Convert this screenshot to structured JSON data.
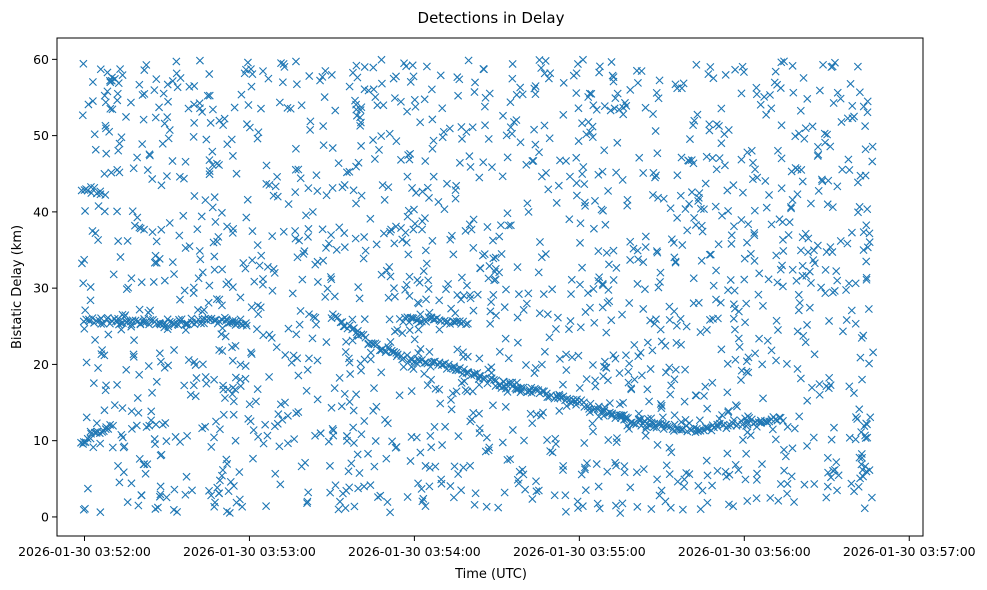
{
  "chart_data": {
    "type": "scatter",
    "title": "Detections in Delay",
    "xlabel": "Time (UTC)",
    "ylabel": "Bistatic Delay (km)",
    "marker": "x",
    "color": "#1f77b4",
    "grid": false,
    "legend": "none",
    "xlim": [
      "2026-01-30 03:51:50",
      "2026-01-30 03:57:05"
    ],
    "ylim": [
      -2.5,
      62.8
    ],
    "x_ticks": [
      "2026-01-30 03:52:00",
      "2026-01-30 03:53:00",
      "2026-01-30 03:54:00",
      "2026-01-30 03:55:00",
      "2026-01-30 03:56:00",
      "2026-01-30 03:57:00"
    ],
    "y_ticks": [
      "0",
      "10",
      "20",
      "30",
      "40",
      "50",
      "60"
    ],
    "y_tick_values": [
      0,
      10,
      20,
      30,
      40,
      50,
      60
    ],
    "x_range": [
      "2026-01-30 03:51:59",
      "2026-01-30 03:56:47"
    ],
    "background_delay_range_km": [
      0.5,
      60
    ],
    "background_detection_count": 1680,
    "tracks": [
      {
        "x": [
          "2026-01-30 03:52:00",
          "2026-01-30 03:52:10",
          "2026-01-30 03:52:20",
          "2026-01-30 03:52:30",
          "2026-01-30 03:52:40",
          "2026-01-30 03:52:50",
          "2026-01-30 03:53:00"
        ],
        "y": [
          25.8,
          25.7,
          25.6,
          25.5,
          25.6,
          25.7,
          25.4
        ]
      },
      {
        "x": [
          "2026-01-30 03:53:30",
          "2026-01-30 03:53:45",
          "2026-01-30 03:54:00",
          "2026-01-30 03:54:15",
          "2026-01-30 03:54:30",
          "2026-01-30 03:54:45",
          "2026-01-30 03:55:00",
          "2026-01-30 03:55:15",
          "2026-01-30 03:55:30",
          "2026-01-30 03:55:45",
          "2026-01-30 03:56:00",
          "2026-01-30 03:56:15"
        ],
        "y": [
          26.5,
          22.5,
          20.5,
          19.5,
          17.5,
          16.5,
          15.0,
          13.0,
          11.8,
          11.5,
          12.5,
          12.8
        ]
      },
      {
        "x": [
          "2026-01-30 03:53:55",
          "2026-01-30 03:54:10",
          "2026-01-30 03:54:20"
        ],
        "y": [
          26.0,
          25.8,
          25.5
        ]
      },
      {
        "x": [
          "2026-01-30 03:51:59",
          "2026-01-30 03:52:05"
        ],
        "y": [
          43.0,
          42.8
        ]
      },
      {
        "x": [
          "2026-01-30 03:51:59",
          "2026-01-30 03:52:10"
        ],
        "y": [
          9.8,
          12.0
        ]
      }
    ]
  }
}
